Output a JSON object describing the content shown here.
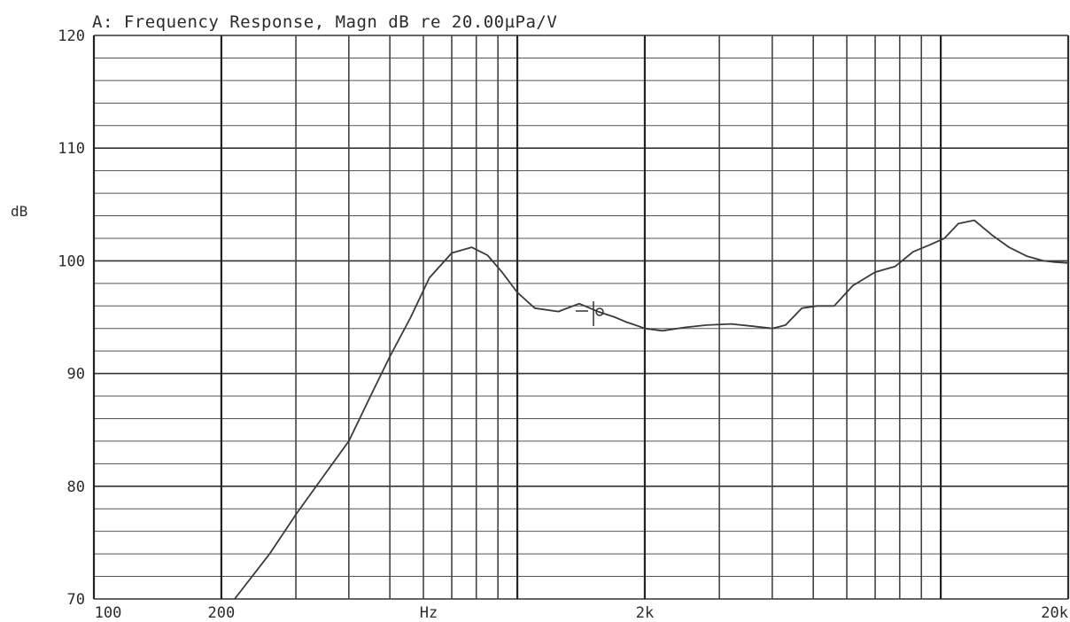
{
  "chart_data": {
    "type": "line",
    "title": "A: Frequency Response, Magn dB re 20.00µPa/V",
    "xlabel": "Hz",
    "ylabel": "dB",
    "x_scale": "log",
    "xlim": [
      100,
      20000
    ],
    "ylim": [
      70,
      120
    ],
    "grid": true,
    "x_tick_labels": [
      {
        "value": 100,
        "label": "100"
      },
      {
        "value": 200,
        "label": "200"
      },
      {
        "value": 2000,
        "label": "2k"
      },
      {
        "value": 20000,
        "label": "20k"
      }
    ],
    "y_tick_labels": [
      {
        "value": 120,
        "label": "120"
      },
      {
        "value": 110,
        "label": "110"
      },
      {
        "value": 100,
        "label": "100"
      },
      {
        "value": 90,
        "label": "90"
      },
      {
        "value": 80,
        "label": "80"
      },
      {
        "value": 70,
        "label": "70"
      }
    ],
    "series": [
      {
        "x": [
          215,
          260,
          300,
          350,
          400,
          450,
          500,
          560,
          620,
          700,
          780,
          850,
          920,
          1000,
          1100,
          1250,
          1400,
          1550,
          1700,
          1800,
          1900,
          2000,
          2200,
          2500,
          2800,
          3200,
          3600,
          4000,
          4300,
          4700,
          5100,
          5600,
          6200,
          7000,
          7800,
          8600,
          9400,
          10200,
          11000,
          12000,
          13200,
          14500,
          16000,
          17500,
          18500,
          20000
        ],
        "y": [
          70.0,
          74.0,
          77.5,
          81.0,
          84.0,
          88.0,
          91.5,
          95.0,
          98.5,
          100.7,
          101.2,
          100.5,
          99.0,
          97.2,
          95.8,
          95.5,
          96.2,
          95.5,
          95.0,
          94.6,
          94.3,
          94.0,
          93.8,
          94.1,
          94.3,
          94.4,
          94.2,
          94.0,
          94.3,
          95.8,
          96.0,
          96.0,
          97.8,
          99.0,
          99.5,
          100.8,
          101.4,
          102.0,
          103.3,
          103.6,
          102.3,
          101.2,
          100.4,
          100.0,
          99.9,
          99.8
        ]
      }
    ]
  }
}
